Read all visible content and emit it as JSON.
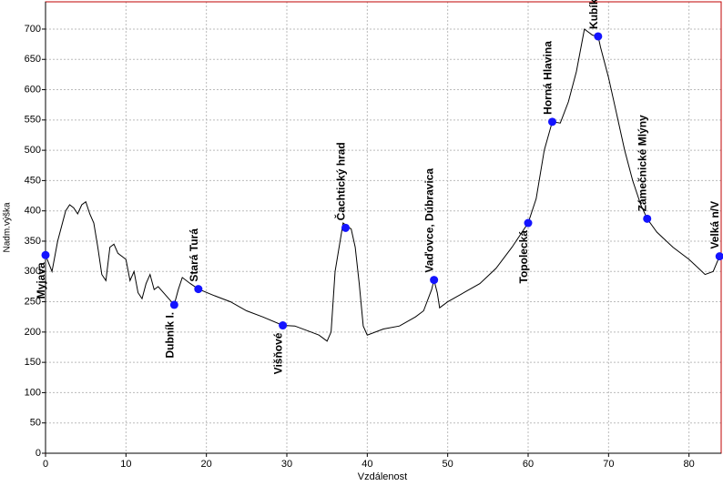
{
  "chart_data": {
    "type": "line",
    "x_label": "Vzdálenost",
    "y_label": "Nadm.výška",
    "xlim": [
      0,
      84
    ],
    "ylim": [
      0,
      745
    ],
    "xticks": [
      0,
      10,
      20,
      30,
      40,
      50,
      60,
      70,
      80
    ],
    "yticks": [
      0,
      50,
      100,
      150,
      200,
      250,
      300,
      350,
      400,
      450,
      500,
      550,
      600,
      650,
      700
    ],
    "grid": true,
    "color": "#000000",
    "x": [
      0,
      0.8,
      1.5,
      2.5,
      3,
      3.5,
      4,
      4.5,
      5,
      5.5,
      6,
      6.5,
      7,
      7.5,
      8,
      8.5,
      9,
      10,
      10.5,
      11,
      11.5,
      12,
      12.5,
      13,
      13.5,
      14,
      15,
      16,
      16.5,
      17,
      18,
      19,
      21,
      23,
      25,
      27,
      29.5,
      31,
      33,
      34,
      35,
      35.5,
      36,
      37,
      38,
      38.5,
      39,
      39.5,
      40,
      42,
      44,
      46,
      47,
      48,
      48.3,
      48.7,
      49,
      50,
      52,
      54,
      56,
      58,
      60,
      61,
      62,
      63,
      64,
      65,
      66,
      67,
      68,
      68.7,
      69,
      70,
      71,
      72,
      73,
      74,
      74.8,
      76,
      78,
      80,
      82,
      83,
      83.8
    ],
    "values": [
      327,
      300,
      350,
      400,
      410,
      405,
      395,
      410,
      415,
      395,
      380,
      340,
      295,
      285,
      340,
      345,
      330,
      320,
      285,
      300,
      265,
      255,
      280,
      295,
      270,
      275,
      260,
      245,
      270,
      290,
      280,
      271,
      260,
      250,
      235,
      225,
      211,
      210,
      200,
      195,
      185,
      200,
      300,
      380,
      370,
      340,
      280,
      210,
      195,
      205,
      210,
      225,
      235,
      270,
      286,
      265,
      240,
      250,
      265,
      280,
      305,
      340,
      380,
      420,
      500,
      547,
      545,
      580,
      630,
      700,
      690,
      688,
      670,
      620,
      560,
      500,
      450,
      410,
      387,
      365,
      340,
      320,
      295,
      300,
      325
    ],
    "points": {
      "color": "#1414ff",
      "labels": [
        "Myjava",
        "Dubník I.",
        "Stará Turá",
        "Višňové",
        "Čachtický hrad",
        "Vaďovce, Dúbravica",
        "Topolecká",
        "Horná Hlavina",
        "Kubíkův vrch",
        "Zámečnické Mlýny",
        "Velká n/V"
      ],
      "x": [
        0,
        16,
        19,
        29.5,
        37.3,
        48.3,
        60,
        63,
        68.7,
        74.8,
        83.8
      ],
      "values": [
        327,
        245,
        271,
        211,
        372,
        286,
        380,
        547,
        688,
        387,
        325
      ]
    }
  }
}
